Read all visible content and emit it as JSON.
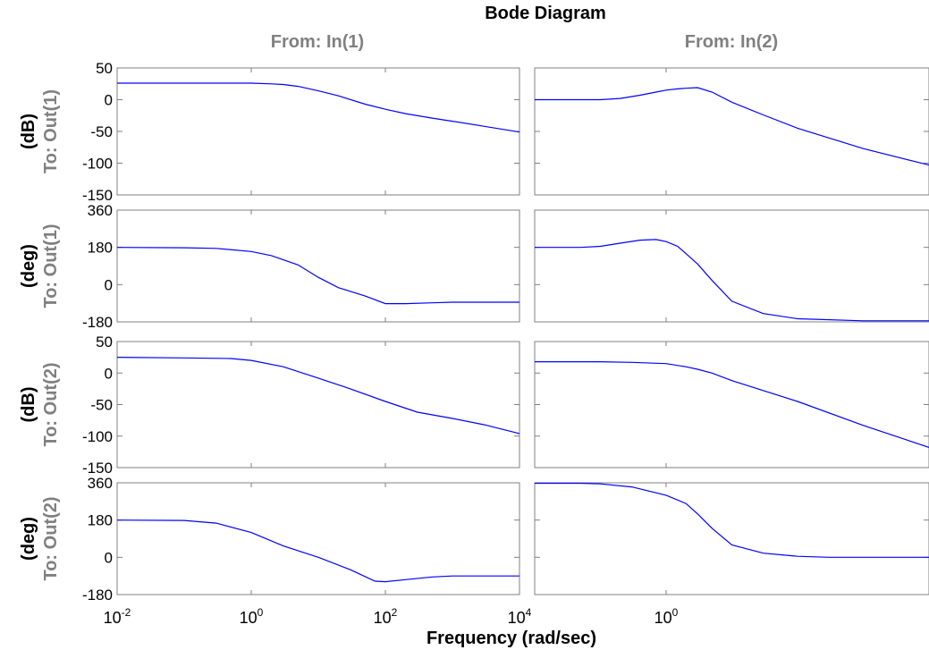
{
  "chart_data": {
    "type": "line",
    "title": "Bode Diagram",
    "xlabel": "Frequency (rad/sec)",
    "x_scale": "log",
    "columns": [
      {
        "title": "From: In(1)",
        "xlim": [
          0.01,
          10000
        ],
        "xticks": [
          {
            "value": 0.01,
            "base": "10",
            "exp": "-2"
          },
          {
            "value": 1,
            "base": "10",
            "exp": "0"
          },
          {
            "value": 100,
            "base": "10",
            "exp": "2"
          },
          {
            "value": 10000,
            "base": "10",
            "exp": "4"
          }
        ]
      },
      {
        "title": "From: In(2)",
        "xlim": [
          0.01,
          10000
        ],
        "xticks": [
          {
            "value": 1,
            "base": "10",
            "exp": "0"
          }
        ]
      }
    ],
    "rows": [
      {
        "unit": "(dB)",
        "to": "To: Out(1)",
        "ylim": [
          -150,
          50
        ],
        "yticks": [
          "50",
          "0",
          "-50",
          "-100",
          "-150"
        ],
        "ytick_values": [
          50,
          0,
          -50,
          -100,
          -150
        ]
      },
      {
        "unit": "(deg)",
        "to": "To: Out(1)",
        "ylim": [
          -180,
          360
        ],
        "yticks": [
          "360",
          "180",
          "0",
          "-180"
        ],
        "ytick_values": [
          360,
          180,
          0,
          -180
        ]
      },
      {
        "unit": "(dB)",
        "to": "To: Out(2)",
        "ylim": [
          -150,
          50
        ],
        "yticks": [
          "50",
          "0",
          "-50",
          "-100",
          "-150"
        ],
        "ytick_values": [
          50,
          0,
          -50,
          -100,
          -150
        ]
      },
      {
        "unit": "(deg)",
        "to": "To: Out(2)",
        "ylim": [
          -180,
          360
        ],
        "yticks": [
          "360",
          "180",
          "0",
          "-180"
        ],
        "ytick_values": [
          360,
          180,
          0,
          -180
        ]
      }
    ],
    "line_color": "#0000ff",
    "series": [
      {
        "row": 0,
        "col": 0,
        "x": [
          0.01,
          0.1,
          1,
          2,
          3,
          5,
          10,
          20,
          50,
          100,
          200,
          500,
          1000,
          3000,
          10000
        ],
        "y": [
          26,
          26,
          26,
          25,
          24,
          21,
          14,
          6,
          -7,
          -15,
          -22,
          -29,
          -34,
          -42,
          -51
        ]
      },
      {
        "row": 0,
        "col": 1,
        "x": [
          0.01,
          0.05,
          0.1,
          0.2,
          0.4,
          0.7,
          1,
          1.5,
          2,
          3,
          5,
          10,
          30,
          100,
          1000,
          10000
        ],
        "y": [
          0,
          0,
          0,
          2,
          7,
          12,
          15,
          17,
          18,
          19,
          12,
          -4,
          -24,
          -45,
          -77,
          -103
        ]
      },
      {
        "row": 1,
        "col": 0,
        "x": [
          0.01,
          0.1,
          0.3,
          1,
          2,
          5,
          10,
          20,
          50,
          100,
          200,
          500,
          1000,
          10000
        ],
        "y": [
          180,
          178,
          175,
          160,
          140,
          95,
          35,
          -15,
          -55,
          -92,
          -92,
          -88,
          -85,
          -85
        ]
      },
      {
        "row": 1,
        "col": 1,
        "x": [
          0.01,
          0.05,
          0.1,
          0.2,
          0.4,
          0.7,
          1,
          1.5,
          2,
          3,
          5,
          10,
          30,
          100,
          1000,
          10000
        ],
        "y": [
          180,
          180,
          185,
          200,
          215,
          218,
          208,
          185,
          150,
          100,
          20,
          -80,
          -140,
          -165,
          -175,
          -175
        ]
      },
      {
        "row": 2,
        "col": 0,
        "x": [
          0.01,
          0.1,
          0.5,
          1,
          3,
          10,
          30,
          100,
          300,
          1000,
          3000,
          10000
        ],
        "y": [
          25,
          24,
          23,
          20,
          10,
          -8,
          -25,
          -45,
          -62,
          -72,
          -82,
          -96
        ]
      },
      {
        "row": 2,
        "col": 1,
        "x": [
          0.01,
          0.1,
          0.3,
          1,
          2,
          3,
          5,
          10,
          100,
          1000,
          10000
        ],
        "y": [
          18,
          18,
          17,
          15,
          10,
          6,
          0,
          -12,
          -45,
          -83,
          -118
        ]
      },
      {
        "row": 3,
        "col": 0,
        "x": [
          0.01,
          0.1,
          0.3,
          1,
          3,
          10,
          30,
          70,
          100,
          200,
          500,
          1000,
          10000
        ],
        "y": [
          180,
          178,
          165,
          120,
          55,
          0,
          -60,
          -115,
          -118,
          -108,
          -95,
          -90,
          -90
        ]
      },
      {
        "row": 3,
        "col": 1,
        "x": [
          0.01,
          0.05,
          0.1,
          0.3,
          1,
          2,
          3,
          5,
          10,
          30,
          100,
          300,
          1000,
          10000
        ],
        "y": [
          358,
          358,
          355,
          340,
          300,
          260,
          210,
          140,
          60,
          20,
          5,
          0,
          0,
          0
        ]
      }
    ],
    "grid": false,
    "legend": "none"
  }
}
